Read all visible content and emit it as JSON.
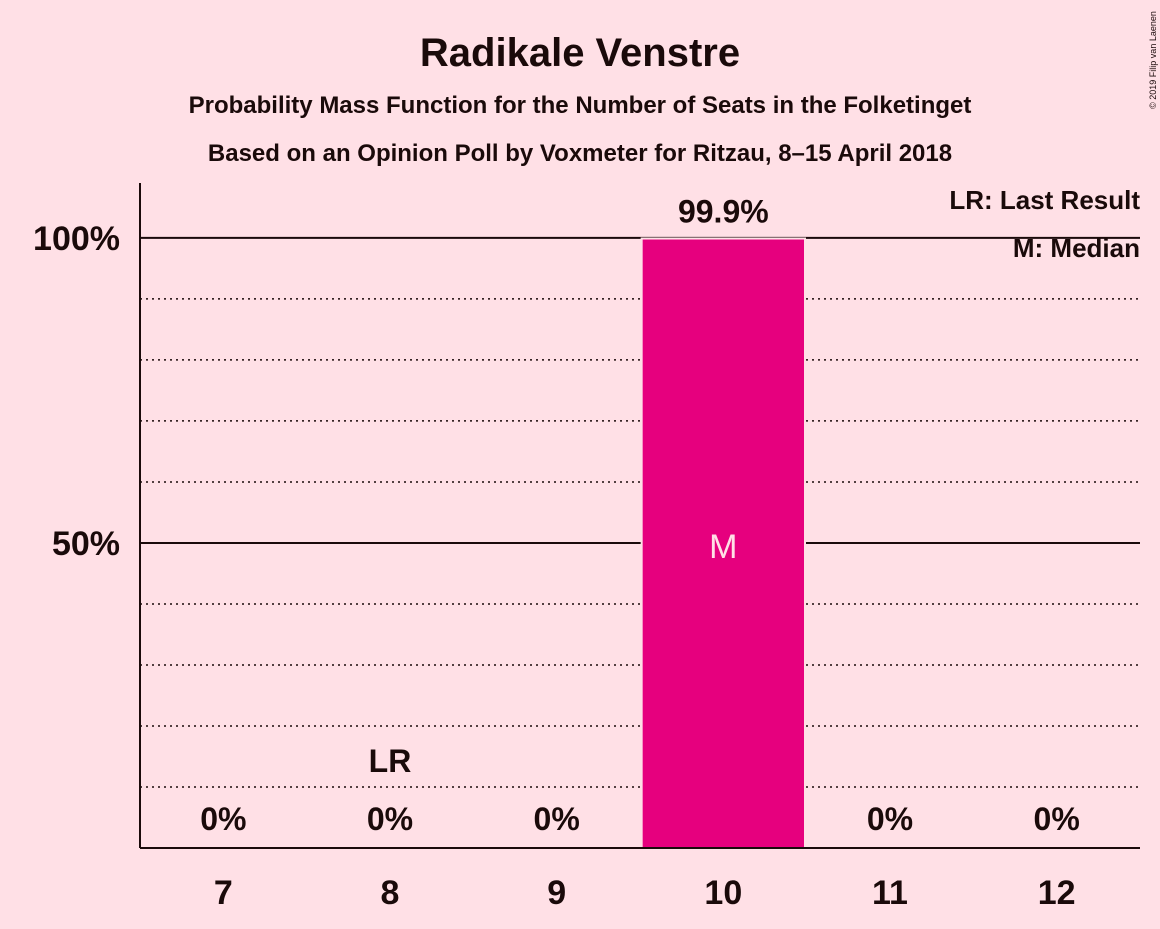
{
  "copyright": "© 2019 Filip van Laenen",
  "chart_data": {
    "type": "bar",
    "title": "Radikale Venstre",
    "subtitle": "Probability Mass Function for the Number of Seats in the Folketinget",
    "subtitle2": "Based on an Opinion Poll by Voxmeter for Ritzau, 8–15 April 2018",
    "categories": [
      "7",
      "8",
      "9",
      "10",
      "11",
      "12"
    ],
    "values": [
      0,
      0,
      0,
      99.9,
      0,
      0
    ],
    "value_labels": [
      "0%",
      "0%",
      "0%",
      "99.9%",
      "0%",
      "0%"
    ],
    "ylim": [
      0,
      109
    ],
    "yticks": [
      {
        "value": 50,
        "label": "50%"
      },
      {
        "value": 100,
        "label": "100%"
      }
    ],
    "minor_grid": [
      10,
      20,
      30,
      40,
      60,
      70,
      80,
      90
    ],
    "last_result": {
      "category": "8",
      "label": "LR"
    },
    "median": {
      "category": "10",
      "label": "M"
    },
    "legend": [
      "LR: Last Result",
      "M: Median"
    ],
    "legend_position": "top-right",
    "bar_color": "#E6007E",
    "background_color": "#FFE0E6"
  }
}
